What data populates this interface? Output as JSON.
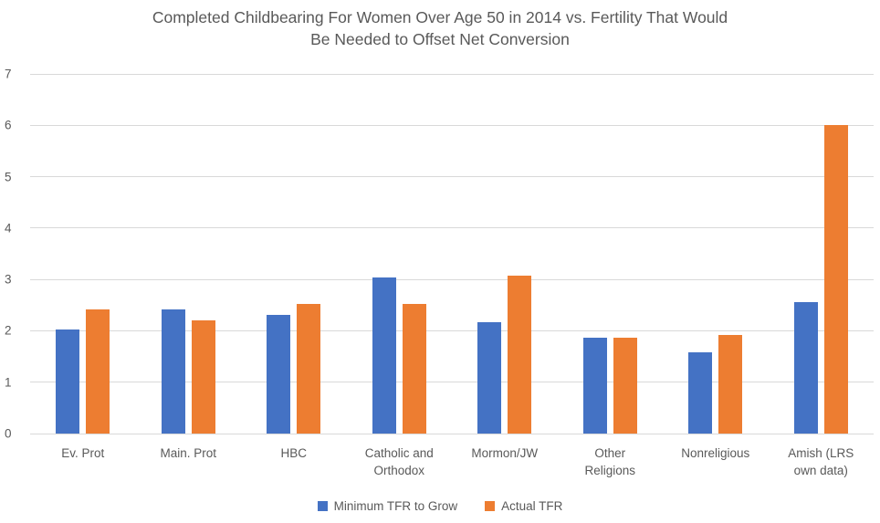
{
  "chart_data": {
    "type": "bar",
    "title": "Completed Childbearing For Women Over Age 50 in 2014 vs. Fertility That Would Be Needed to Offset Net Conversion",
    "title_lines": [
      "Completed Childbearing For Women Over Age 50 in 2014 vs. Fertility That Would",
      "Be Needed to Offset Net Conversion"
    ],
    "categories": [
      "Ev. Prot",
      "Main. Prot",
      "HBC",
      "Catholic and\nOrthodox",
      "Mormon/JW",
      "Other\nReligions",
      "Nonreligious",
      "Amish (LRS\nown data)"
    ],
    "series": [
      {
        "name": "Minimum TFR to Grow",
        "color": "#4472C4",
        "values": [
          2.03,
          2.42,
          2.31,
          3.04,
          2.17,
          1.86,
          1.58,
          2.56
        ]
      },
      {
        "name": "Actual TFR",
        "color": "#ED7D31",
        "values": [
          2.42,
          2.21,
          2.53,
          2.53,
          3.08,
          1.86,
          1.92,
          6.0
        ]
      }
    ],
    "xlabel": "",
    "ylabel": "",
    "ylim": [
      0,
      7
    ],
    "yticks": [
      0,
      1,
      2,
      3,
      4,
      5,
      6,
      7
    ],
    "grid": true,
    "legend_position": "bottom",
    "colors": {
      "grid": "#D9D9D9",
      "axis_text": "#595959",
      "title_text": "#595959",
      "background": "#FFFFFF"
    }
  }
}
